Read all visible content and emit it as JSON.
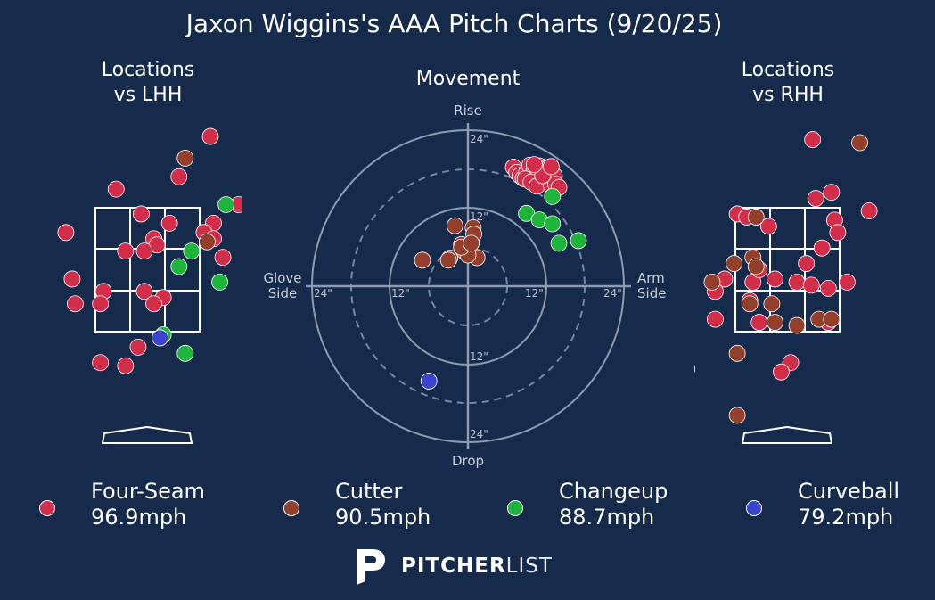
{
  "title": "Jaxon Wiggins's AAA Pitch Charts (9/20/25)",
  "colors": {
    "background": "#162a4c",
    "four_seam": "#d22d49",
    "cutter": "#933f2c",
    "changeup": "#1db53a",
    "curveball": "#3c44cd",
    "line": "#ffffff",
    "axis_label": "#c8d0dc"
  },
  "brand": {
    "name_bold": "PITCHER",
    "name_light": "LIST",
    "icon": "pitcherlist-p-icon"
  },
  "chart_data": [
    {
      "type": "scatter",
      "title": "Locations\nvs LHH",
      "title_lines": [
        "Locations",
        "vs LHH"
      ],
      "x_units": "feet (plate_x)",
      "y_units": "feet (plate_z)",
      "xlim": [
        -2.5,
        2.5
      ],
      "ylim": [
        0,
        5
      ],
      "strike_zone": {
        "x": [
          -0.83,
          0.83
        ],
        "z": [
          1.5,
          3.5
        ]
      },
      "series": [
        {
          "name": "Four-Seam",
          "points": [
            [
              1.0,
              4.65
            ],
            [
              0.5,
              4.0
            ],
            [
              -0.5,
              3.8
            ],
            [
              -0.1,
              3.4
            ],
            [
              0.35,
              3.25
            ],
            [
              1.05,
              3.25
            ],
            [
              0.9,
              3.1
            ],
            [
              1.05,
              3.0
            ],
            [
              0.1,
              3.0
            ],
            [
              0.15,
              2.9
            ],
            [
              -0.35,
              2.8
            ],
            [
              -0.05,
              2.8
            ],
            [
              1.2,
              2.7
            ],
            [
              -1.3,
              3.1
            ],
            [
              -1.2,
              2.35
            ],
            [
              -0.7,
              2.15
            ],
            [
              -0.05,
              2.15
            ],
            [
              0.25,
              2.05
            ],
            [
              -0.75,
              1.95
            ],
            [
              0.1,
              1.95
            ],
            [
              -1.15,
              1.95
            ],
            [
              -0.15,
              1.25
            ],
            [
              -0.75,
              1.0
            ],
            [
              -0.35,
              0.95
            ],
            [
              1.45,
              3.55
            ]
          ]
        },
        {
          "name": "Cutter",
          "points": [
            [
              0.6,
              4.3
            ],
            [
              0.95,
              2.95
            ]
          ]
        },
        {
          "name": "Changeup",
          "points": [
            [
              1.25,
              3.55
            ],
            [
              0.7,
              2.8
            ],
            [
              0.5,
              2.55
            ],
            [
              1.15,
              2.3
            ],
            [
              0.6,
              1.15
            ],
            [
              0.25,
              1.45
            ]
          ]
        },
        {
          "name": "Curveball",
          "points": [
            [
              0.2,
              1.4
            ]
          ]
        }
      ]
    },
    {
      "type": "scatter",
      "title": "Movement",
      "x_units": "inches (horizontal break)",
      "y_units": "inches (induced vertical break)",
      "xlim": [
        -24,
        24
      ],
      "ylim": [
        -24,
        24
      ],
      "rings": [
        12,
        18,
        24,
        6
      ],
      "tick_labels": [
        "24\"",
        "12\"",
        "12\"",
        "24\"",
        "24\"",
        "12\"",
        "12\"",
        "24\""
      ],
      "axis_labels": {
        "top": "Rise",
        "bottom": "Drop",
        "left_line1": "Glove",
        "left_line2": "Side",
        "right_line1": "Arm",
        "right_line2": "Side"
      },
      "series": [
        {
          "name": "Four-Seam",
          "points": [
            [
              7.0,
              18.3
            ],
            [
              7.5,
              17.5
            ],
            [
              8.0,
              17.0
            ],
            [
              8.5,
              16.6
            ],
            [
              9.0,
              17.4
            ],
            [
              9.5,
              18.6
            ],
            [
              10.0,
              17.2
            ],
            [
              10.2,
              18.0
            ],
            [
              11.0,
              18.5
            ],
            [
              11.5,
              18.0
            ],
            [
              12.0,
              17.6
            ],
            [
              12.5,
              18.3
            ],
            [
              8.8,
              16.5
            ],
            [
              9.7,
              16.0
            ],
            [
              10.6,
              15.4
            ],
            [
              12.8,
              15.5
            ],
            [
              13.3,
              17.0
            ],
            [
              13.5,
              15.7
            ],
            [
              14.0,
              15.2
            ],
            [
              11.5,
              17.0
            ],
            [
              10.2,
              18.7
            ],
            [
              12.8,
              18.4
            ]
          ]
        },
        {
          "name": "Cutter",
          "points": [
            [
              -2.0,
              9.3
            ],
            [
              0.8,
              9.0
            ],
            [
              0.9,
              8.0
            ],
            [
              -1.0,
              6.4
            ],
            [
              -0.5,
              5.3
            ],
            [
              1.4,
              4.4
            ],
            [
              0.0,
              4.8
            ],
            [
              -2.8,
              4.3
            ],
            [
              -7.0,
              4.0
            ],
            [
              -3.0,
              4.0
            ],
            [
              -1.0,
              6.0
            ],
            [
              0.5,
              6.6
            ]
          ]
        },
        {
          "name": "Changeup",
          "points": [
            [
              13.0,
              13.8
            ],
            [
              9.0,
              11.2
            ],
            [
              11.0,
              10.2
            ],
            [
              13.0,
              9.6
            ],
            [
              14.0,
              6.6
            ],
            [
              17.0,
              7.0
            ]
          ]
        },
        {
          "name": "Curveball",
          "points": [
            [
              -6.0,
              -14.6
            ]
          ]
        }
      ]
    },
    {
      "type": "scatter",
      "title": "Locations\nvs RHH",
      "title_lines": [
        "Locations",
        "vs RHH"
      ],
      "x_units": "feet (plate_x)",
      "y_units": "feet (plate_z)",
      "xlim": [
        -2.5,
        2.5
      ],
      "ylim": [
        0,
        5
      ],
      "strike_zone": {
        "x": [
          -0.83,
          0.83
        ],
        "z": [
          1.5,
          3.5
        ]
      },
      "series": [
        {
          "name": "Four-Seam",
          "points": [
            [
              0.4,
              4.6
            ],
            [
              0.45,
              3.65
            ],
            [
              0.7,
              3.75
            ],
            [
              1.3,
              3.45
            ],
            [
              -0.8,
              3.4
            ],
            [
              -0.65,
              3.35
            ],
            [
              -0.3,
              3.2
            ],
            [
              0.75,
              3.3
            ],
            [
              0.8,
              3.1
            ],
            [
              0.55,
              2.85
            ],
            [
              0.3,
              2.6
            ],
            [
              -1.0,
              2.35
            ],
            [
              -0.55,
              2.3
            ],
            [
              -0.2,
              2.35
            ],
            [
              0.15,
              2.3
            ],
            [
              0.38,
              2.25
            ],
            [
              0.65,
              2.2
            ],
            [
              0.95,
              2.3
            ],
            [
              -1.15,
              2.15
            ],
            [
              -0.6,
              2.0
            ],
            [
              -1.15,
              1.7
            ],
            [
              -0.45,
              1.65
            ],
            [
              0.65,
              1.65
            ],
            [
              0.05,
              1.0
            ],
            [
              -0.1,
              0.85
            ],
            [
              -0.45,
              2.5
            ]
          ]
        },
        {
          "name": "Cutter",
          "points": [
            [
              1.15,
              4.55
            ],
            [
              -0.5,
              3.35
            ],
            [
              -0.55,
              2.7
            ],
            [
              -0.5,
              2.55
            ],
            [
              -0.85,
              2.6
            ],
            [
              -1.2,
              2.3
            ],
            [
              -0.6,
              1.95
            ],
            [
              -0.25,
              1.95
            ],
            [
              -0.2,
              1.65
            ],
            [
              0.15,
              1.6
            ],
            [
              0.5,
              1.7
            ],
            [
              0.7,
              1.7
            ],
            [
              -0.8,
              1.15
            ],
            [
              -1.6,
              0.9
            ],
            [
              -0.8,
              0.15
            ]
          ]
        },
        {
          "name": "Changeup",
          "points": []
        },
        {
          "name": "Curveball",
          "points": []
        }
      ]
    }
  ],
  "legend": [
    {
      "name": "Four-Seam",
      "speed": "96.9mph",
      "color": "#d22d49"
    },
    {
      "name": "Cutter",
      "speed": "90.5mph",
      "color": "#933f2c"
    },
    {
      "name": "Changeup",
      "speed": "88.7mph",
      "color": "#1db53a"
    },
    {
      "name": "Curveball",
      "speed": "79.2mph",
      "color": "#3c44cd"
    }
  ]
}
